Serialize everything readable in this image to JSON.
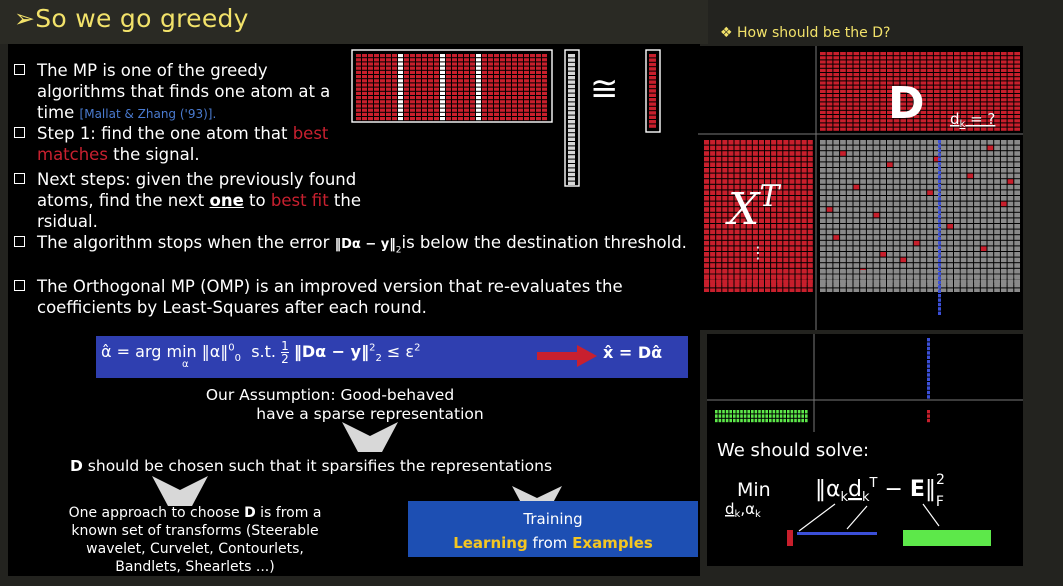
{
  "title": "So we go greedy",
  "right_title": "How should be the D?",
  "bullets": {
    "b1_l1": "The MP is one of the greedy",
    "b1_l2": "algorithms that finds one atom at a",
    "b1_l3": "time",
    "b1_cite": "[Mallat & Zhang ('93)].",
    "b2_l1a": "Step 1: find the one atom that ",
    "b2_l1b": "best",
    "b2_l2a": "matches",
    "b2_l2b": " the signal.",
    "b3_l1": "Next steps: given the previously found",
    "b3_l2a": "atoms, find the next ",
    "b3_l2b": "one",
    "b3_l2c": " to ",
    "b3_l2d": "best fit",
    "b3_l2e": " the",
    "b3_l3": "rsidual.",
    "b4a": "The algorithm stops when the error ",
    "b4b": "is below the destination threshold.",
    "b5_l1": "The Orthogonal MP (OMP) is an improved version that re-evaluates the",
    "b5_l2": "coefficients by Least-Squares after each round."
  },
  "equation": {
    "alpha_hat": "α̂",
    "eq1": "= arg min",
    "alpha_sub": "α",
    "norm0": "‖α‖",
    "norm0_sup": "0",
    "norm0_sub": "0",
    "st": "s.t.",
    "half_num": "1",
    "half_den": "2",
    "resid": "‖Dα − y‖",
    "r_sup": "2",
    "r_sub": "2",
    "leq": "≤ ε",
    "eps_sup": "2",
    "xhat": "x̂ = Dα̂"
  },
  "error_norm": "‖Dα − y‖",
  "error_sub": "2",
  "approx": "≅",
  "assumption_l1": "Our Assumption: Good-behaved",
  "assumption_l2": "have a sparse representation",
  "d_chosen_bold": "D",
  "d_chosen_rest": " should be chosen such that it sparsifies the representations",
  "approach": {
    "l1a": "One approach to choose ",
    "l1b": "D",
    "l1c": " is from a",
    "l2": "known set of transforms (Steerable",
    "l3": "wavelet, Curvelet, Contourlets,",
    "l4": "Bandlets, Shearlets ...)"
  },
  "training": {
    "label": "Training",
    "l2a": "Learning",
    "l2b": " from ",
    "l2c": "Examples"
  },
  "right": {
    "D": "D",
    "dk": "d",
    "dk_sub": "k",
    "dk_q": " = ?",
    "xT": "X",
    "xT_sup": "T",
    "dots": "⋮",
    "solve": "We should solve:",
    "min": "Min",
    "min_sub": "d",
    "min_sub2": "k",
    "min_sub3": ",α",
    "min_sub4": "k",
    "expr": "‖α",
    "expr_k": "k",
    "expr_d": "d",
    "expr_dk": "k",
    "expr_T": "T",
    "expr_minus": " − ",
    "expr_E": "E",
    "expr_close": "‖",
    "expr_sup": "2",
    "expr_sub": "F"
  },
  "colors": {
    "title": "#f2e26a",
    "red": "#c8202f",
    "blue_box": "#2f3fb0",
    "train_box": "#1d4fb3",
    "matrix_red": "#c81f2c",
    "green": "#5de84a",
    "blue_col": "#3b4fd8",
    "grey": "#8a8a8a"
  }
}
